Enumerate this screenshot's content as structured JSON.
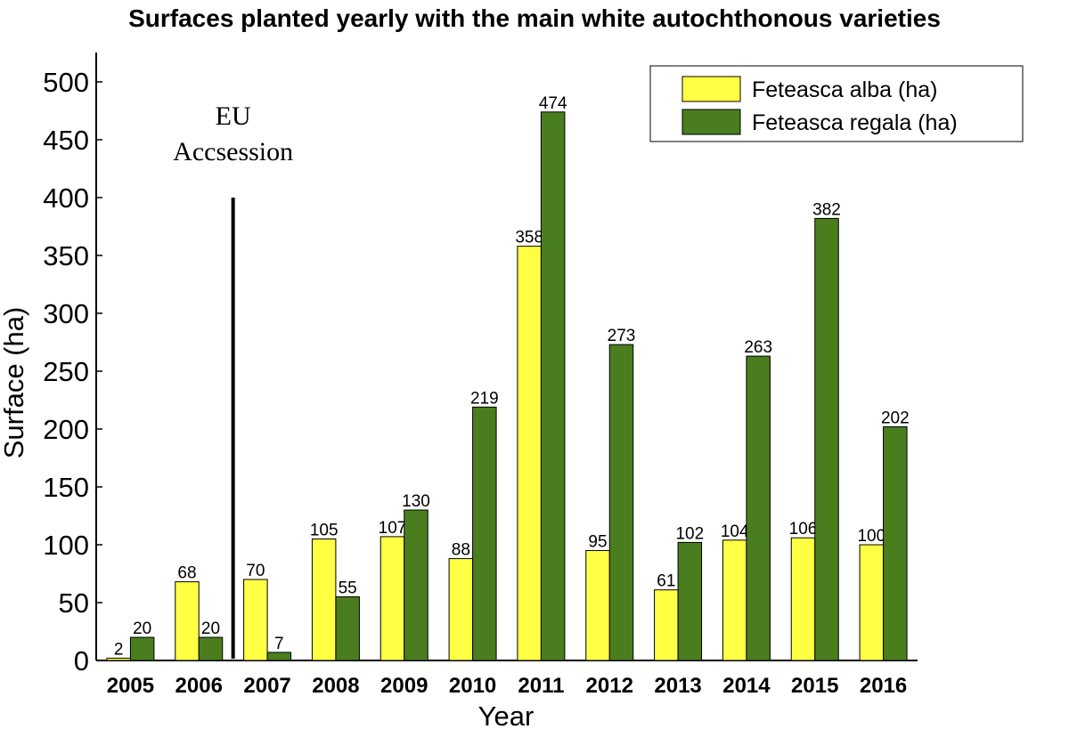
{
  "chart_data": {
    "type": "bar",
    "title": "Surfaces planted yearly with the main white autochthonous varieties",
    "xlabel": "Year",
    "ylabel": "Surface (ha)",
    "ylim": [
      0,
      525
    ],
    "yticks": [
      "0",
      "50",
      "100",
      "150",
      "200",
      "250",
      "300",
      "350",
      "400",
      "450",
      "500"
    ],
    "categories": [
      "2005",
      "2006",
      "2007",
      "2008",
      "2009",
      "2010",
      "2011",
      "2012",
      "2013",
      "2014",
      "2015",
      "2016"
    ],
    "series": [
      {
        "name": "Feteasca alba (ha)",
        "color": "#ffff44",
        "values": [
          2,
          68,
          70,
          105,
          107,
          88,
          358,
          95,
          61,
          104,
          106,
          100
        ],
        "labels": [
          "2",
          "68",
          "70",
          "105",
          "107",
          "88",
          "358",
          "95",
          "61",
          "104",
          "106",
          "100"
        ]
      },
      {
        "name": "Feteasca regala (ha)",
        "color": "#4a7d1e",
        "values": [
          20,
          20,
          7,
          55,
          130,
          219,
          474,
          273,
          102,
          263,
          382,
          202
        ],
        "labels": [
          "20",
          "20",
          "7",
          "55",
          "130",
          "219",
          "474",
          "273",
          "102",
          "263",
          "382",
          "202"
        ]
      }
    ],
    "legend_position": "top-right",
    "grid": false,
    "annotation": {
      "lines": [
        "EU",
        "Accsession"
      ],
      "between": [
        "2006",
        "2007"
      ],
      "line_top_value": 400
    }
  }
}
